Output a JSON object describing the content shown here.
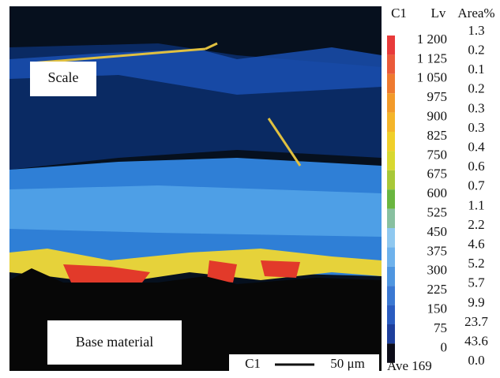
{
  "legend": {
    "element": "C1",
    "level_header": "Lv",
    "area_header": "Area%",
    "levels": [
      "1 200",
      "1 125",
      "1 050",
      "975",
      "900",
      "825",
      "750",
      "675",
      "600",
      "525",
      "450",
      "375",
      "300",
      "225",
      "150",
      "75",
      "0"
    ],
    "areas": [
      "1.3",
      "0.2",
      "0.1",
      "0.2",
      "0.3",
      "0.3",
      "0.4",
      "0.6",
      "0.7",
      "1.1",
      "2.2",
      "4.6",
      "5.2",
      "5.7",
      "9.9",
      "23.7",
      "43.6",
      "0.0"
    ],
    "average": "Ave 169"
  },
  "labels": {
    "scale": "Scale",
    "base": "Base material"
  },
  "scale_bar": {
    "element": "C1",
    "length": "50 μm"
  }
}
